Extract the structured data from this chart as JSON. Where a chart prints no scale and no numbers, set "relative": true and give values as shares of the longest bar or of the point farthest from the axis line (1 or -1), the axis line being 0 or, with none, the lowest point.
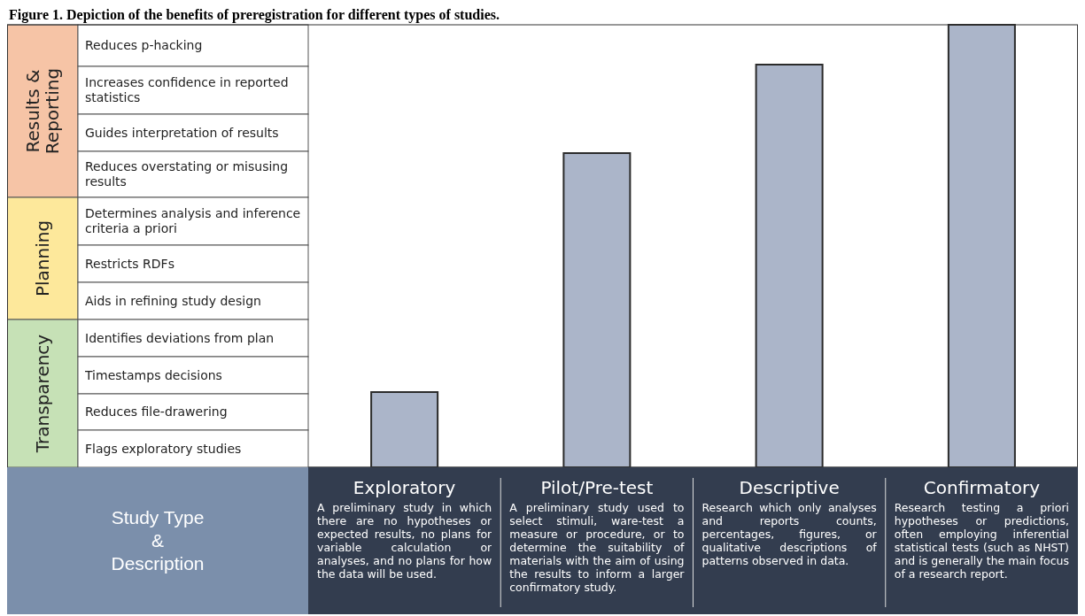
{
  "chart_data": {
    "type": "bar",
    "title": "Figure 1. Depiction of the benefits of preregistration for different types of studies.",
    "categories": [
      "Exploratory",
      "Pilot/Pre-test",
      "Descriptive",
      "Confirmatory"
    ],
    "values": [
      0.17,
      0.71,
      0.91,
      1
    ],
    "color": "#abb5c9",
    "relative": true,
    "annotations": [
      "Reduces p-hacking",
      "Increases confidence in reported statistics",
      "Guides interpretation of results",
      "Reduces overstating or misusing results",
      "Determines analysis and inference criteria a priori",
      "Restricts RDFs",
      "Aids in refining study design",
      "Identifies deviations from plan",
      "Timestamps decisions",
      "Reduces file-drawering",
      "Flags exploratory studies",
      "Results & Reporting",
      "Planning",
      "Transparency",
      "A preliminary study in which there are no hypotheses or expected results, no plans for variable calculation or analyses, and no plans for how the data will be used.",
      "A preliminary study used to select stimuli, ware-test a measure or procedure, or to determine the suitability of materials with the aim of using the results to inform a larger confirmatory study.",
      "Research which only analyses and reports counts, percentages, figures, or qualitative descriptions of patterns observed in data.",
      "Research testing a priori hypotheses or predictions, often employing inferential statistical tests (such as NHST) and is generally the main focus of a research report.",
      "Study Type & Description"
    ]
  }
}
